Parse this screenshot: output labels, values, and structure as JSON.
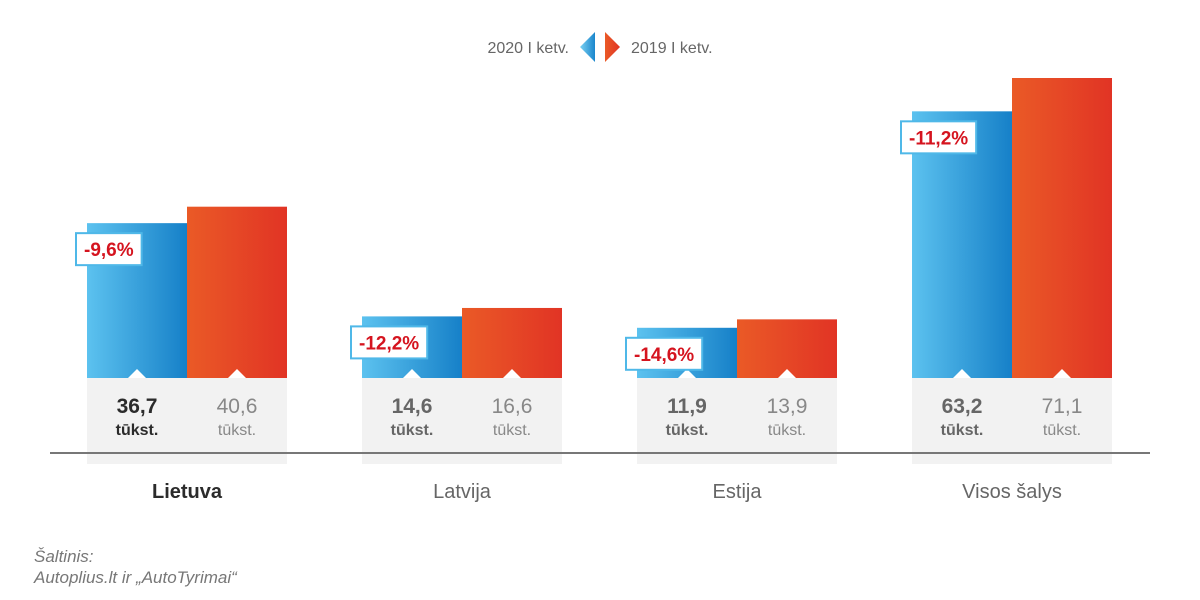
{
  "chart_data": {
    "type": "bar",
    "categories": [
      "Lietuva",
      "Latvija",
      "Estija",
      "Visos šalys"
    ],
    "series": [
      {
        "name": "2020 I ketv.",
        "values": [
          36.7,
          14.6,
          11.9,
          63.2
        ],
        "labels": [
          "36,7",
          "14,6",
          "11,9",
          "63,2"
        ],
        "color": "#1e90d6"
      },
      {
        "name": "2019 I ketv.",
        "values": [
          40.6,
          16.6,
          13.9,
          71.1
        ],
        "labels": [
          "40,6",
          "16,6",
          "13,9",
          "71,1"
        ],
        "color": "#e8362a"
      }
    ],
    "unit_label": "tūkst.",
    "changes": [
      "-9,6%",
      "-12,2%",
      "-14,6%",
      "-11,2%"
    ],
    "highlight_category": "Lietuva",
    "ylim": [
      0,
      71.1
    ],
    "grid": false,
    "legend_position": "top-center"
  },
  "source": {
    "label": "Šaltinis:",
    "text": "Autoplius.lt ir „AutoTyrimai“"
  }
}
